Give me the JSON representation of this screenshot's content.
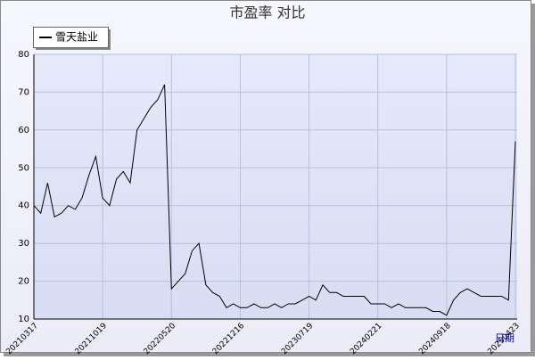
{
  "chart_data": {
    "type": "line",
    "title": "市盈率  对比",
    "x_label": "日期",
    "categories": [
      "20210317",
      null,
      null,
      null,
      null,
      null,
      null,
      null,
      null,
      null,
      "20211019",
      null,
      null,
      null,
      null,
      null,
      null,
      null,
      null,
      null,
      "20220520",
      null,
      null,
      null,
      null,
      null,
      null,
      null,
      null,
      null,
      "20221216",
      null,
      null,
      null,
      null,
      null,
      null,
      null,
      null,
      null,
      "20230719",
      null,
      null,
      null,
      null,
      null,
      null,
      null,
      null,
      null,
      "20240221",
      null,
      null,
      null,
      null,
      null,
      null,
      null,
      null,
      null,
      "20240918",
      null,
      null,
      null,
      null,
      null,
      null,
      null,
      null,
      null,
      "20250423"
    ],
    "series": [
      {
        "name": "雪天盐业",
        "color": "#000000",
        "values": [
          40,
          38,
          46,
          37,
          38,
          40,
          39,
          42,
          48,
          53,
          42,
          40,
          47,
          49,
          46,
          60,
          63,
          66,
          68,
          72,
          18,
          20,
          22,
          28,
          30,
          19,
          17,
          16,
          13,
          14,
          13,
          13,
          14,
          13,
          13,
          14,
          13,
          14,
          14,
          15,
          16,
          15,
          19,
          17,
          17,
          16,
          16,
          16,
          16,
          14,
          14,
          14,
          13,
          14,
          13,
          13,
          13,
          13,
          12,
          12,
          11,
          15,
          17,
          18,
          17,
          16,
          16,
          16,
          16,
          15,
          57
        ]
      }
    ],
    "ylim": [
      10,
      80
    ],
    "yticks": [
      10,
      20,
      30,
      40,
      50,
      60,
      70,
      80
    ],
    "grid": true,
    "legend": "top-left"
  }
}
